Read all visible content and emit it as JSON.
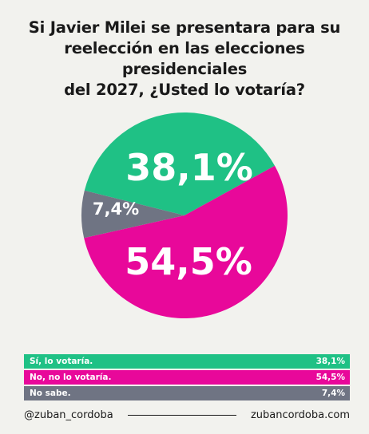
{
  "title_lines": [
    "Si Javier Milei se presentara para  su",
    "reelección en las elecciones presidenciales",
    "del 2027, ¿Usted lo votaría?"
  ],
  "chart_data": {
    "type": "pie",
    "slices": [
      {
        "label": "Sí, lo votaría.",
        "value": 38.1,
        "display": "38,1%",
        "color": "#1fc185"
      },
      {
        "label": "No, no lo votaría.",
        "value": 54.5,
        "display": "54,5%",
        "color": "#e8089a"
      },
      {
        "label": "No sabe.",
        "value": 7.4,
        "display": "7,4%",
        "color": "#6f7483"
      }
    ]
  },
  "footer": {
    "handle": "@zuban_cordoba",
    "website": "zubancordoba.com"
  }
}
